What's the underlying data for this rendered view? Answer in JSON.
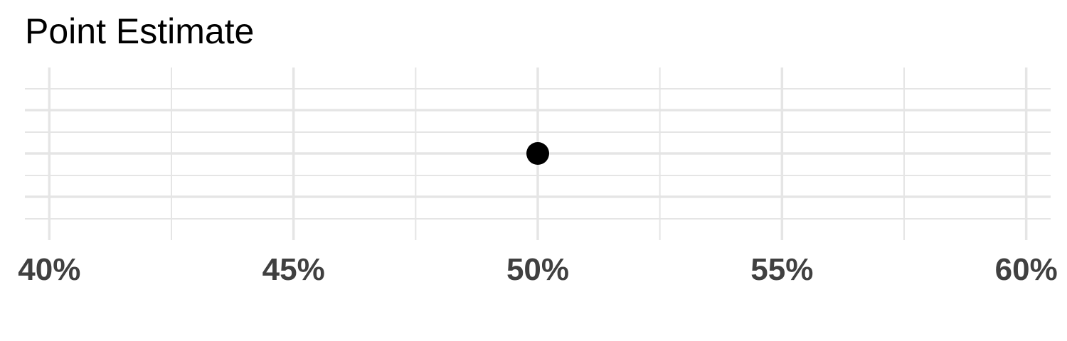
{
  "chart_data": {
    "type": "scatter",
    "title": "Point Estimate",
    "xlabel": "",
    "ylabel": "",
    "x_ticks": [
      0.4,
      0.45,
      0.5,
      0.55,
      0.6
    ],
    "x_tick_labels": [
      "40%",
      "45%",
      "50%",
      "55%",
      "60%"
    ],
    "x_minor_ticks": [
      0.425,
      0.475,
      0.525,
      0.575
    ],
    "xlim": [
      0.395,
      0.605
    ],
    "points": [
      {
        "x": 0.5
      }
    ],
    "grid": true,
    "colors": {
      "point": "#000000",
      "grid": "#e5e5e5",
      "tick_label": "#404040",
      "title": "#000000"
    }
  }
}
